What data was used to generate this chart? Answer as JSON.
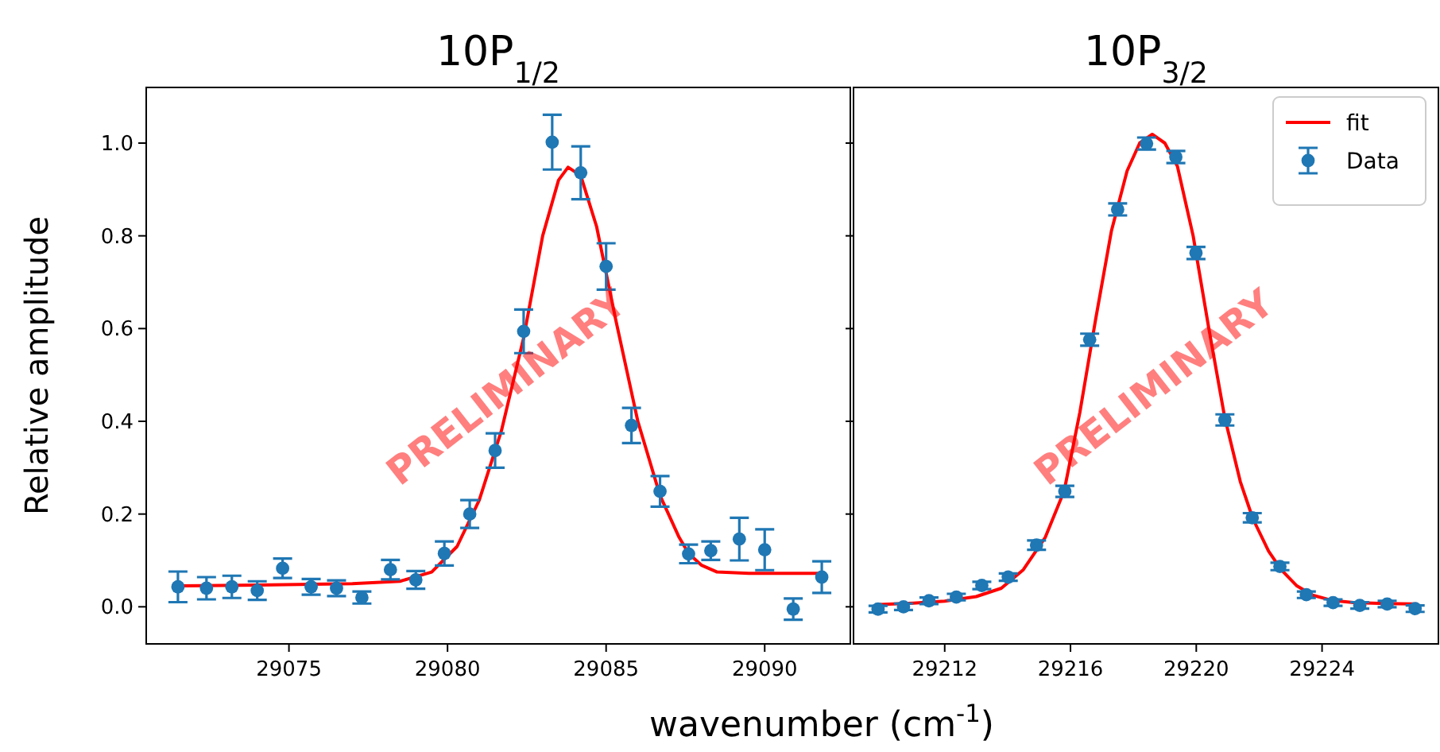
{
  "chart_data": [
    {
      "type": "scatter",
      "title": "10P$_{1/2}$",
      "xlabel": "wavenumber (cm$^{-1}$)",
      "ylabel": "Relative amplitude",
      "annotations": [
        "PRELIMINARY"
      ],
      "xlim": [
        29070.5,
        29092.7
      ],
      "xticks": [
        29075,
        29080,
        29085,
        29090
      ],
      "ylim": [
        -0.08,
        1.12
      ],
      "yticks": [
        {
          "value": 0,
          "label": "0.0"
        },
        0.2,
        0.4,
        0.6,
        0.8,
        {
          "value": 1,
          "label": "1.0"
        }
      ],
      "legend": false,
      "series": [
        {
          "type": "line",
          "color": "#ff0000",
          "x": [
            29071.5,
            29074,
            29077,
            29078.5,
            29079.5,
            29080.3,
            29081,
            29081.7,
            29082.4,
            29083,
            29083.5,
            29083.8,
            29084.2,
            29084.7,
            29085.3,
            29086,
            29086.7,
            29087.3,
            29087.6,
            29088,
            29088.5,
            29089.5,
            29091.8
          ],
          "values": [
            0.045,
            0.047,
            0.05,
            0.055,
            0.075,
            0.13,
            0.23,
            0.38,
            0.58,
            0.8,
            0.92,
            0.948,
            0.93,
            0.82,
            0.62,
            0.4,
            0.24,
            0.15,
            0.115,
            0.09,
            0.075,
            0.072,
            0.072
          ]
        },
        {
          "marker": "circle",
          "color": "#1f77b4",
          "x": [
            29071.5,
            29072.4,
            29073.2,
            29074.0,
            29074.8,
            29075.7,
            29076.5,
            29077.3,
            29078.2,
            29079.0,
            29079.9,
            29080.7,
            29081.5,
            29082.4,
            29083.3,
            29084.2,
            29085.0,
            29085.8,
            29086.7,
            29087.6,
            29088.3,
            29089.2,
            29090.0,
            29090.9,
            29091.8
          ],
          "values": [
            0.043,
            0.04,
            0.043,
            0.035,
            0.083,
            0.043,
            0.04,
            0.02,
            0.08,
            0.058,
            0.115,
            0.2,
            0.337,
            0.594,
            1.002,
            0.936,
            0.734,
            0.391,
            0.249,
            0.114,
            0.121,
            0.146,
            0.123,
            -0.005,
            0.064
          ],
          "errors": [
            0.033,
            0.024,
            0.024,
            0.02,
            0.021,
            0.017,
            0.017,
            0.013,
            0.021,
            0.019,
            0.026,
            0.03,
            0.037,
            0.047,
            0.059,
            0.057,
            0.05,
            0.038,
            0.033,
            0.02,
            0.02,
            0.046,
            0.044,
            0.023,
            0.034
          ]
        }
      ]
    },
    {
      "type": "scatter",
      "title": "10P$_{3/2}$",
      "annotations": [
        "PRELIMINARY"
      ],
      "xlim": [
        29209.1,
        29227.7
      ],
      "xticks": [
        29212,
        29216,
        29220,
        29224
      ],
      "ylim": [
        -0.08,
        1.12
      ],
      "yticks": [
        0,
        0.2,
        0.4,
        0.6,
        0.8,
        1
      ],
      "tick_labels": "x",
      "legend": "top right",
      "series": [
        {
          "type": "line",
          "name": "fit",
          "color": "#ff0000",
          "x": [
            29209.9,
            29211,
            29212,
            29213,
            29213.8,
            29214.5,
            29215.2,
            29215.8,
            29216.3,
            29216.8,
            29217.3,
            29217.8,
            29218.2,
            29218.6,
            29219,
            29219.4,
            29219.9,
            29220.4,
            29220.9,
            29221.4,
            29221.8,
            29222.3,
            29222.7,
            29223.2,
            29223.7,
            29224.3,
            29225,
            29226,
            29227
          ],
          "values": [
            0.005,
            0.008,
            0.012,
            0.022,
            0.04,
            0.08,
            0.15,
            0.25,
            0.42,
            0.62,
            0.81,
            0.94,
            1.0,
            1.019,
            1.0,
            0.95,
            0.8,
            0.6,
            0.41,
            0.27,
            0.19,
            0.12,
            0.08,
            0.045,
            0.025,
            0.014,
            0.009,
            0.007,
            0.006
          ]
        },
        {
          "marker": "circle",
          "name": "Data",
          "color": "#1f77b4",
          "x": [
            29209.88,
            29210.69,
            29211.5,
            29212.37,
            29213.18,
            29214.02,
            29214.92,
            29215.82,
            29216.61,
            29217.5,
            29218.42,
            29219.35,
            29219.99,
            29220.91,
            29221.78,
            29222.66,
            29223.5,
            29224.35,
            29225.2,
            29226.07,
            29226.96
          ],
          "values": [
            -0.005,
            0.0,
            0.013,
            0.021,
            0.046,
            0.064,
            0.133,
            0.249,
            0.576,
            0.857,
            0.999,
            0.97,
            0.763,
            0.403,
            0.192,
            0.087,
            0.026,
            0.009,
            0.003,
            0.006,
            -0.004
          ],
          "errors": [
            0.007,
            0.007,
            0.007,
            0.007,
            0.008,
            0.008,
            0.01,
            0.012,
            0.013,
            0.013,
            0.013,
            0.013,
            0.013,
            0.012,
            0.01,
            0.008,
            0.007,
            0.007,
            0.007,
            0.007,
            0.007
          ]
        }
      ]
    }
  ]
}
